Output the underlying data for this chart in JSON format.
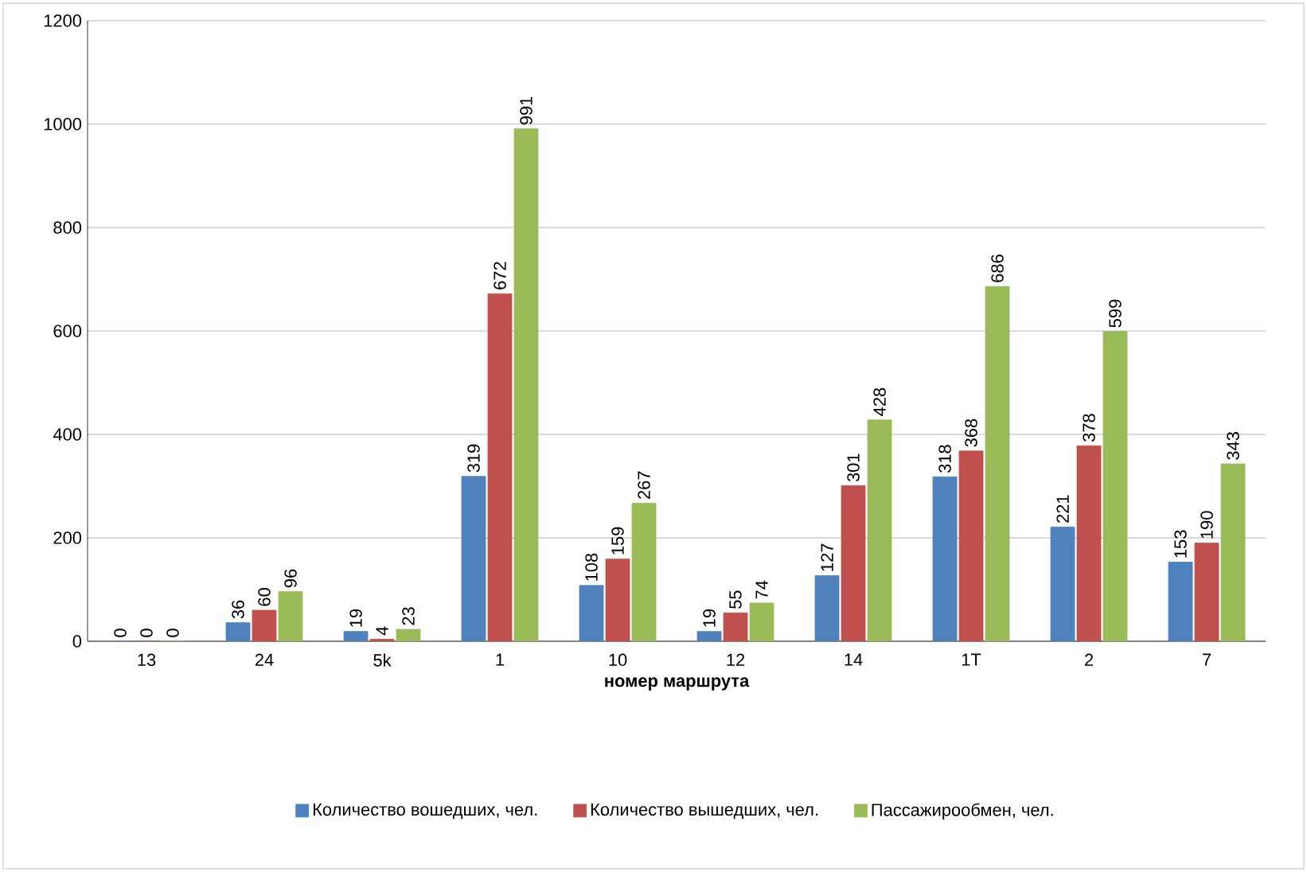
{
  "chart_data": {
    "type": "bar",
    "xlabel": "номер маршрута",
    "categories": [
      "13",
      "24",
      "5k",
      "1",
      "10",
      "12",
      "14",
      "1T",
      "2",
      "7"
    ],
    "series": [
      {
        "name": "Количество вошедших, чел.",
        "color": "#4f81bd",
        "values": [
          0,
          36,
          19,
          319,
          108,
          19,
          127,
          318,
          221,
          153
        ]
      },
      {
        "name": "Количество вышедших, чел.",
        "color": "#c0504d",
        "values": [
          0,
          60,
          4,
          672,
          159,
          55,
          301,
          368,
          378,
          190
        ]
      },
      {
        "name": "Пассажирообмен, чел.",
        "color": "#9bbb59",
        "values": [
          0,
          96,
          23,
          991,
          267,
          74,
          428,
          686,
          599,
          343
        ]
      }
    ],
    "ylim": [
      0,
      1200
    ],
    "yticks": [
      0,
      200,
      400,
      600,
      800,
      1000,
      1200
    ],
    "grid": "y",
    "legend": "bottom",
    "data_labels": true
  }
}
